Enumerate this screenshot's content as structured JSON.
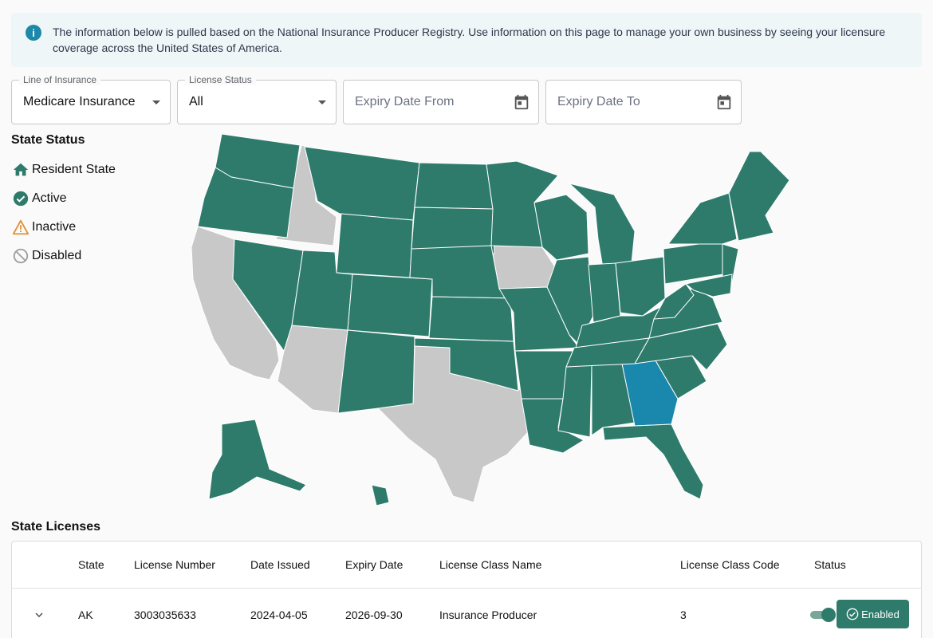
{
  "banner": {
    "text": "The information below is pulled based on the National Insurance Producer Registry. Use information on this page to manage your own business by seeing your licensure coverage across the United States of America."
  },
  "filters": {
    "line_of_insurance": {
      "label": "Line of Insurance",
      "value": "Medicare Insurance"
    },
    "license_status": {
      "label": "License Status",
      "value": "All"
    },
    "expiry_from": {
      "placeholder": "Expiry Date From"
    },
    "expiry_to": {
      "placeholder": "Expiry Date To"
    }
  },
  "state_status": {
    "title": "State Status",
    "legend": [
      {
        "label": "Resident State",
        "icon": "home-icon",
        "color": "#2e7b6c"
      },
      {
        "label": "Active",
        "icon": "check-circle-icon",
        "color": "#2e7b6c"
      },
      {
        "label": "Inactive",
        "icon": "warning-icon",
        "color": "#e0913a"
      },
      {
        "label": "Disabled",
        "icon": "disabled-icon",
        "color": "#9e9e9e"
      }
    ]
  },
  "map_colors": {
    "active": "#2e7b6c",
    "disabled": "#c8c8c8",
    "resident": "#1a88ad"
  },
  "licenses": {
    "title": "State Licenses",
    "columns": [
      "State",
      "License Number",
      "Date Issued",
      "Expiry Date",
      "License Class Name",
      "License Class Code",
      "Status"
    ],
    "rows": [
      {
        "state": "AK",
        "license_number": "3003035633",
        "date_issued": "2024-04-05",
        "expiry_date": "2026-09-30",
        "class_name": "Insurance Producer",
        "class_code": "3",
        "status_label": "Enabled"
      }
    ]
  }
}
